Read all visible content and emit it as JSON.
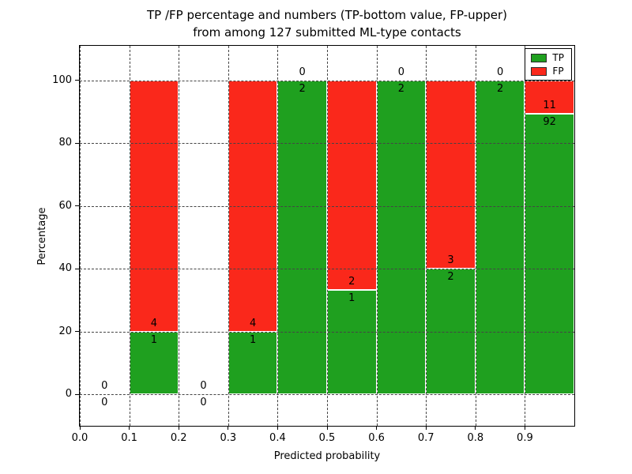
{
  "chart_data": {
    "type": "bar",
    "stacked": true,
    "title_lines": [
      "TP /FP percentage and numbers (TP-bottom value, FP-upper)",
      "from among 127 submitted ML-type contacts"
    ],
    "total_contacts": 127,
    "xlabel": "Predicted probability",
    "ylabel": "Percentage",
    "xlim": [
      0.0,
      1.0
    ],
    "ylim": [
      -10,
      111
    ],
    "grid": true,
    "xticks": [
      {
        "value": 0.0,
        "label": "0.0"
      },
      {
        "value": 0.1,
        "label": "0.1"
      },
      {
        "value": 0.2,
        "label": "0.2"
      },
      {
        "value": 0.3,
        "label": "0.3"
      },
      {
        "value": 0.4,
        "label": "0.4"
      },
      {
        "value": 0.5,
        "label": "0.5"
      },
      {
        "value": 0.6,
        "label": "0.6"
      },
      {
        "value": 0.7,
        "label": "0.7"
      },
      {
        "value": 0.8,
        "label": "0.8"
      },
      {
        "value": 0.9,
        "label": "0.9"
      }
    ],
    "yticks": [
      {
        "value": 0,
        "label": "0"
      },
      {
        "value": 20,
        "label": "20"
      },
      {
        "value": 40,
        "label": "40"
      },
      {
        "value": 60,
        "label": "60"
      },
      {
        "value": 80,
        "label": "80"
      },
      {
        "value": 100,
        "label": "100"
      }
    ],
    "legend": {
      "position": "upper right",
      "entries": [
        {
          "label": "TP",
          "color": "#1fa01f"
        },
        {
          "label": "FP",
          "color": "#fa281b"
        }
      ]
    },
    "bins": [
      {
        "range": [
          0.0,
          0.1
        ],
        "tp_count": 0,
        "fp_count": 0,
        "tp_pct": 0,
        "fp_pct": 0
      },
      {
        "range": [
          0.1,
          0.2
        ],
        "tp_count": 1,
        "fp_count": 4,
        "tp_pct": 20,
        "fp_pct": 80
      },
      {
        "range": [
          0.2,
          0.3
        ],
        "tp_count": 0,
        "fp_count": 0,
        "tp_pct": 0,
        "fp_pct": 0
      },
      {
        "range": [
          0.3,
          0.4
        ],
        "tp_count": 1,
        "fp_count": 4,
        "tp_pct": 20,
        "fp_pct": 80
      },
      {
        "range": [
          0.4,
          0.5
        ],
        "tp_count": 2,
        "fp_count": 0,
        "tp_pct": 100,
        "fp_pct": 0
      },
      {
        "range": [
          0.5,
          0.6
        ],
        "tp_count": 1,
        "fp_count": 2,
        "tp_pct": 33.33,
        "fp_pct": 66.67
      },
      {
        "range": [
          0.6,
          0.7
        ],
        "tp_count": 2,
        "fp_count": 0,
        "tp_pct": 100,
        "fp_pct": 0
      },
      {
        "range": [
          0.7,
          0.8
        ],
        "tp_count": 2,
        "fp_count": 3,
        "tp_pct": 40,
        "fp_pct": 60
      },
      {
        "range": [
          0.8,
          0.9
        ],
        "tp_count": 2,
        "fp_count": 0,
        "tp_pct": 100,
        "fp_pct": 0
      },
      {
        "range": [
          0.9,
          1.0
        ],
        "tp_count": 92,
        "fp_count": 11,
        "tp_pct": 89.32,
        "fp_pct": 10.68
      }
    ]
  }
}
